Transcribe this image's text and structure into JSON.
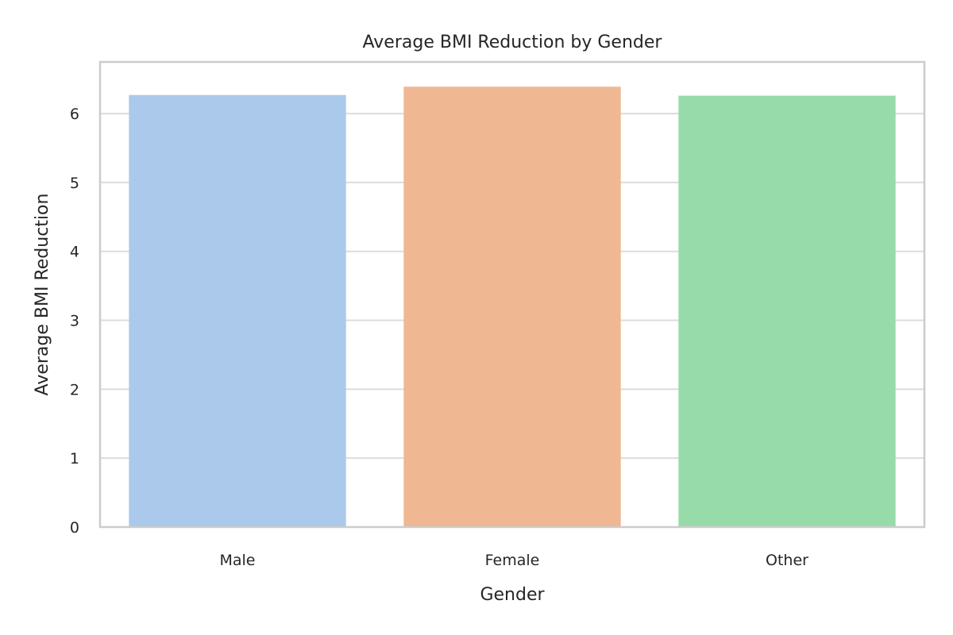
{
  "chart_data": {
    "type": "bar",
    "title": "Average BMI Reduction by Gender",
    "xlabel": "Gender",
    "ylabel": "Average BMI Reduction",
    "categories": [
      "Male",
      "Female",
      "Other"
    ],
    "values": [
      6.27,
      6.39,
      6.26
    ],
    "colors": [
      "#abc9ea",
      "#efb792",
      "#98dbaa"
    ],
    "ylim": [
      0,
      6.75
    ],
    "yticks": [
      0,
      1,
      2,
      3,
      4,
      5,
      6
    ],
    "grid": true,
    "grid_axis": "y"
  }
}
